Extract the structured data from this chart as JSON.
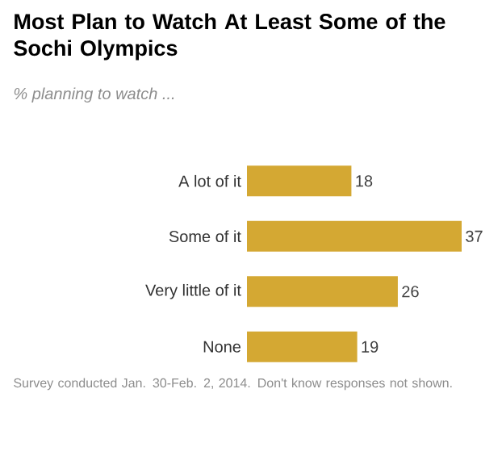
{
  "chart_data": {
    "type": "bar",
    "orientation": "horizontal",
    "title": "Most Plan to Watch At Least Some of the Sochi Olympics",
    "subtitle": "% planning to watch ...",
    "categories": [
      "A lot of it",
      "Some of it",
      "Very little of it",
      "None"
    ],
    "values": [
      18,
      37,
      26,
      19
    ],
    "color": "#d4a833",
    "data_labels": true,
    "annotations": [
      "Survey conducted Jan. 30-Feb. 2, 2014. Don't know responses not shown."
    ]
  }
}
